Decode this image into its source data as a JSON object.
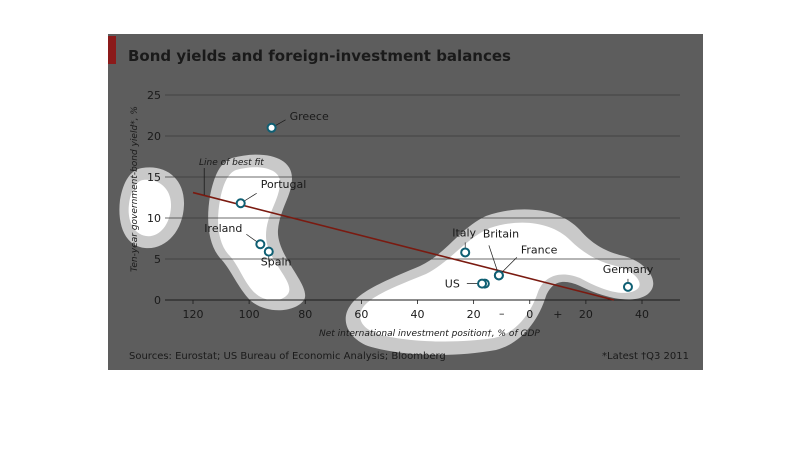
{
  "chart_data": {
    "type": "scatter",
    "title": "Bond yields and foreign-investment balances",
    "xlabel": "Net international investment position†, % of GDP",
    "ylabel": "Ten-year government-bond yield*, %",
    "xlim": [
      -130,
      45
    ],
    "ylim": [
      0,
      25
    ],
    "x_ticks": [
      {
        "value": -120,
        "label": "120"
      },
      {
        "value": -100,
        "label": "100"
      },
      {
        "value": -80,
        "label": "80"
      },
      {
        "value": -60,
        "label": "60"
      },
      {
        "value": -40,
        "label": "40"
      },
      {
        "value": -20,
        "label": "20"
      },
      {
        "value": 0,
        "label": "0"
      },
      {
        "value": 20,
        "label": "20"
      },
      {
        "value": 40,
        "label": "40"
      }
    ],
    "x_sign_minus": "–",
    "x_sign_plus": "+",
    "y_ticks": [
      0,
      5,
      10,
      15,
      20,
      25
    ],
    "points": [
      {
        "label": "Greece",
        "x": -92,
        "y": 21.0
      },
      {
        "label": "Portugal",
        "x": -103,
        "y": 11.8
      },
      {
        "label": "Ireland",
        "x": -96,
        "y": 6.8
      },
      {
        "label": "Spain",
        "x": -93,
        "y": 5.9
      },
      {
        "label": "Italy",
        "x": -23,
        "y": 5.8
      },
      {
        "label": "Britain",
        "x": -11,
        "y": 3.0
      },
      {
        "label": "France",
        "x": -11,
        "y": 3.0
      },
      {
        "label": "US",
        "x": -16,
        "y": 2.0
      },
      {
        "label": "US",
        "x": -17,
        "y": 2.0
      },
      {
        "label": "Germany",
        "x": 35,
        "y": 1.6
      }
    ],
    "best_fit": {
      "label": "Line of best fit",
      "x1": -120,
      "y1": 13.1,
      "x2": 30,
      "y2": 0.0
    },
    "grid": true,
    "colors": {
      "marker": "#0f5f73",
      "fit_line": "#7a1a10",
      "zero_label": "#c0392b",
      "title_accent": "#8b1a1a"
    }
  },
  "sources": "Sources: Eurostat; US Bureau of Economic Analysis; Bloomberg",
  "latest_note": "*Latest   †Q3 2011"
}
